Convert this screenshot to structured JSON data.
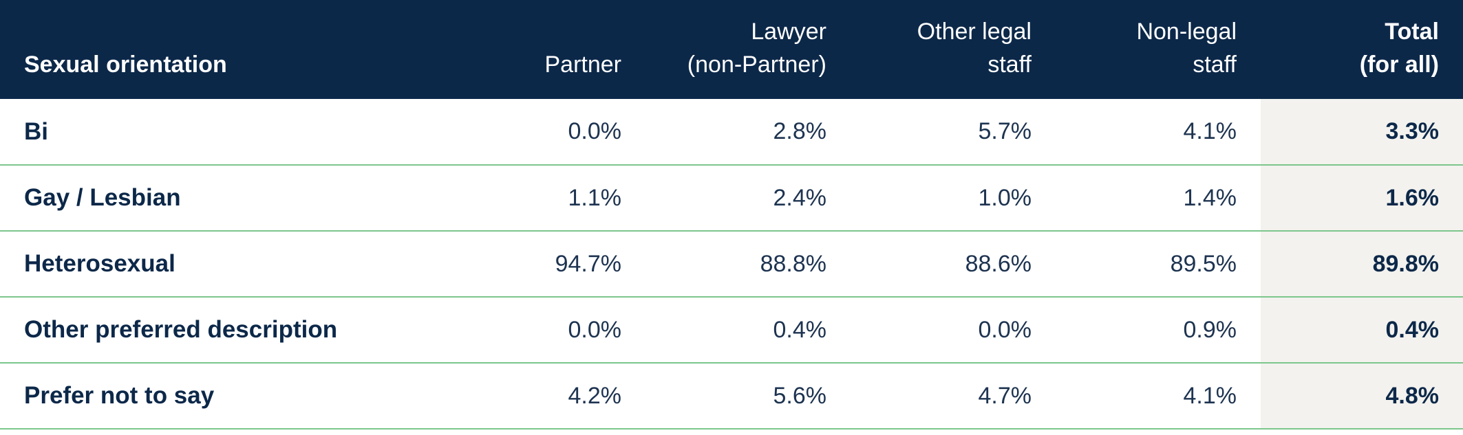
{
  "table": {
    "columns": [
      {
        "lines": [
          "Sexual orientation"
        ]
      },
      {
        "lines": [
          "",
          "Partner"
        ]
      },
      {
        "lines": [
          "Lawyer",
          "(non-Partner)"
        ]
      },
      {
        "lines": [
          "Other legal",
          "staff"
        ]
      },
      {
        "lines": [
          "Non-legal",
          "staff"
        ]
      },
      {
        "lines": [
          "Total",
          "(for all)"
        ]
      }
    ],
    "rows": [
      {
        "label": "Bi",
        "partner": "0.0%",
        "lawyer": "2.8%",
        "other_legal": "5.7%",
        "non_legal": "4.1%",
        "total": "3.3%"
      },
      {
        "label": "Gay / Lesbian",
        "partner": "1.1%",
        "lawyer": "2.4%",
        "other_legal": "1.0%",
        "non_legal": "1.4%",
        "total": "1.6%"
      },
      {
        "label": "Heterosexual",
        "partner": "94.7%",
        "lawyer": "88.8%",
        "other_legal": "88.6%",
        "non_legal": "89.5%",
        "total": "89.8%"
      },
      {
        "label": "Other preferred description",
        "partner": "0.0%",
        "lawyer": "0.4%",
        "other_legal": "0.0%",
        "non_legal": "0.9%",
        "total": "0.4%"
      },
      {
        "label": "Prefer not to say",
        "partner": "4.2%",
        "lawyer": "5.6%",
        "other_legal": "4.7%",
        "non_legal": "4.1%",
        "total": "4.8%"
      }
    ]
  },
  "colors": {
    "header_bg": "#0c2849",
    "row_divider": "#7cc68c",
    "total_column_bg": "#f3f2ee",
    "text": "#0c2849"
  }
}
